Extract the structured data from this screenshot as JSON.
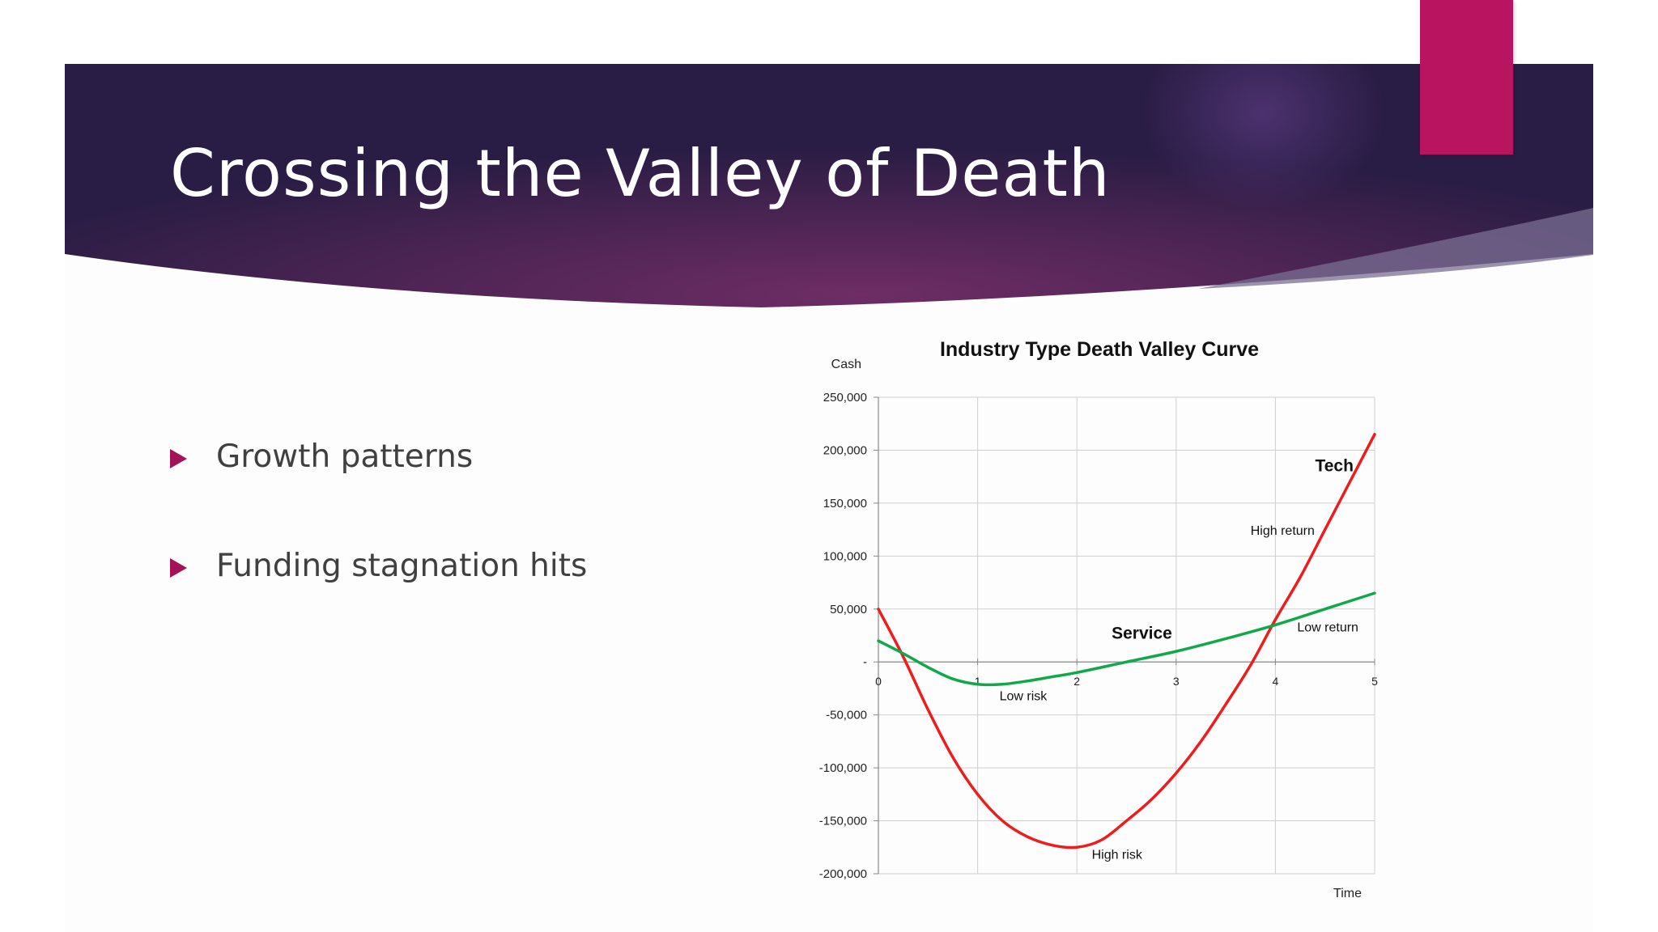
{
  "slide": {
    "title": "Crossing the Valley of Death",
    "bullets": [
      "Growth patterns",
      "Funding stagnation hits"
    ]
  },
  "colors": {
    "banner_dark": "#2b1f47",
    "banner_mid": "#6a2d63",
    "accent": "#b8145f",
    "bullet": "#a31357",
    "tech_line": "#ee1c1c",
    "service_line": "#12a84a"
  },
  "chart_data": {
    "type": "line",
    "title": "Industry Type Death Valley Curve",
    "xlabel": "Time",
    "ylabel": "Cash",
    "xlim": [
      0,
      5
    ],
    "ylim": [
      -200000,
      250000
    ],
    "x_ticks": [
      "0",
      "1",
      "2",
      "3",
      "4",
      "5"
    ],
    "y_ticks": [
      {
        "value": 250000,
        "label": "250,000"
      },
      {
        "value": 200000,
        "label": "200,000"
      },
      {
        "value": 150000,
        "label": "150,000"
      },
      {
        "value": 100000,
        "label": "100,000"
      },
      {
        "value": 50000,
        "label": "50,000"
      },
      {
        "value": 0,
        "label": "-"
      },
      {
        "value": -50000,
        "label": "-50,000"
      },
      {
        "value": -100000,
        "label": "-100,000"
      },
      {
        "value": -150000,
        "label": "-150,000"
      },
      {
        "value": -200000,
        "label": "-200,000"
      }
    ],
    "grid": true,
    "series": [
      {
        "name": "Tech",
        "color": "#ee1c1c",
        "x": [
          0,
          0.25,
          0.5,
          0.75,
          1,
          1.25,
          1.5,
          1.75,
          2,
          2.25,
          2.5,
          2.75,
          3,
          3.25,
          3.5,
          3.75,
          4,
          4.25,
          4.5,
          4.75,
          5
        ],
        "y": [
          50000,
          5000,
          -45000,
          -90000,
          -125000,
          -150000,
          -165000,
          -173000,
          -175000,
          -168000,
          -150000,
          -130000,
          -105000,
          -75000,
          -40000,
          -3000,
          40000,
          80000,
          125000,
          170000,
          215000
        ]
      },
      {
        "name": "Service",
        "color": "#12a84a",
        "x": [
          0,
          0.25,
          0.5,
          0.75,
          1,
          1.25,
          1.5,
          1.75,
          2,
          2.5,
          3,
          3.5,
          4,
          4.5,
          5
        ],
        "y": [
          20000,
          8000,
          -5000,
          -16000,
          -21000,
          -21000,
          -18000,
          -14000,
          -10000,
          0,
          10000,
          22000,
          35000,
          50000,
          65000
        ]
      }
    ],
    "annotations": [
      {
        "text": "Tech",
        "x": 4.4,
        "y": 180000,
        "bold": true,
        "size": "large"
      },
      {
        "text": "Service",
        "x": 2.35,
        "y": 22000,
        "bold": true,
        "size": "large"
      },
      {
        "text": "High return",
        "x": 3.75,
        "y": 120000,
        "bold": false,
        "size": "small"
      },
      {
        "text": "Low return",
        "x": 4.22,
        "y": 29000,
        "bold": false,
        "size": "small"
      },
      {
        "text": "Low risk",
        "x": 1.22,
        "y": -36000,
        "bold": false,
        "size": "small"
      },
      {
        "text": "High risk",
        "x": 2.15,
        "y": -186000,
        "bold": false,
        "size": "small"
      }
    ]
  }
}
